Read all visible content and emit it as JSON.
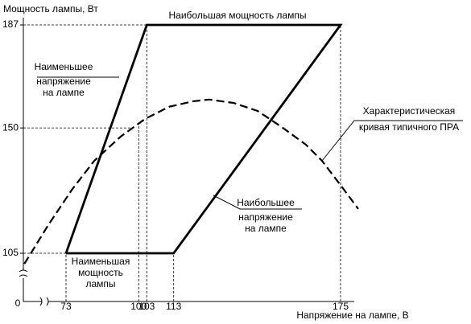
{
  "chart_data": {
    "type": "line",
    "title": "Наибольшая мощность лампы",
    "y_label": "Мощность лампы, Вт",
    "x_label": "Напряжение на лампе, В",
    "origin_label": "0",
    "xlim": [
      57,
      180
    ],
    "ylim": [
      88,
      190
    ],
    "xticks": [
      73,
      100,
      103,
      113,
      175
    ],
    "yticks": [
      105,
      150,
      187
    ],
    "series": [
      {
        "style": "solid",
        "color": "#000000",
        "x": [
          73,
          103,
          175,
          113,
          73
        ],
        "values": [
          105,
          187,
          187,
          105,
          105
        ]
      },
      {
        "style": "dashed",
        "color": "#000000",
        "x": [
          57.5,
          66.4,
          75.4,
          83.5,
          93.3,
          102.3,
          111.3,
          120.3,
          126.2,
          135.2,
          144.2,
          153.2,
          162.1,
          168.1,
          175.6,
          181.6
        ],
        "values": [
          101.2,
          115.1,
          128.1,
          138.2,
          146.9,
          153.2,
          157.6,
          159.6,
          160.2,
          159.0,
          156.1,
          150.3,
          144.0,
          138.2,
          128.7,
          120.9
        ]
      }
    ],
    "annotations": [
      {
        "lines": [
          "Наименьшее",
          "напряжение",
          "на лампе"
        ]
      },
      {
        "lines": [
          "Наименьшая",
          "мощность",
          "лампы"
        ]
      },
      {
        "lines": [
          "Наибольшее",
          "напряжение",
          "на лампе"
        ]
      },
      {
        "lines": [
          "Характеристическая",
          "кривая типичного ПРА"
        ]
      }
    ]
  }
}
